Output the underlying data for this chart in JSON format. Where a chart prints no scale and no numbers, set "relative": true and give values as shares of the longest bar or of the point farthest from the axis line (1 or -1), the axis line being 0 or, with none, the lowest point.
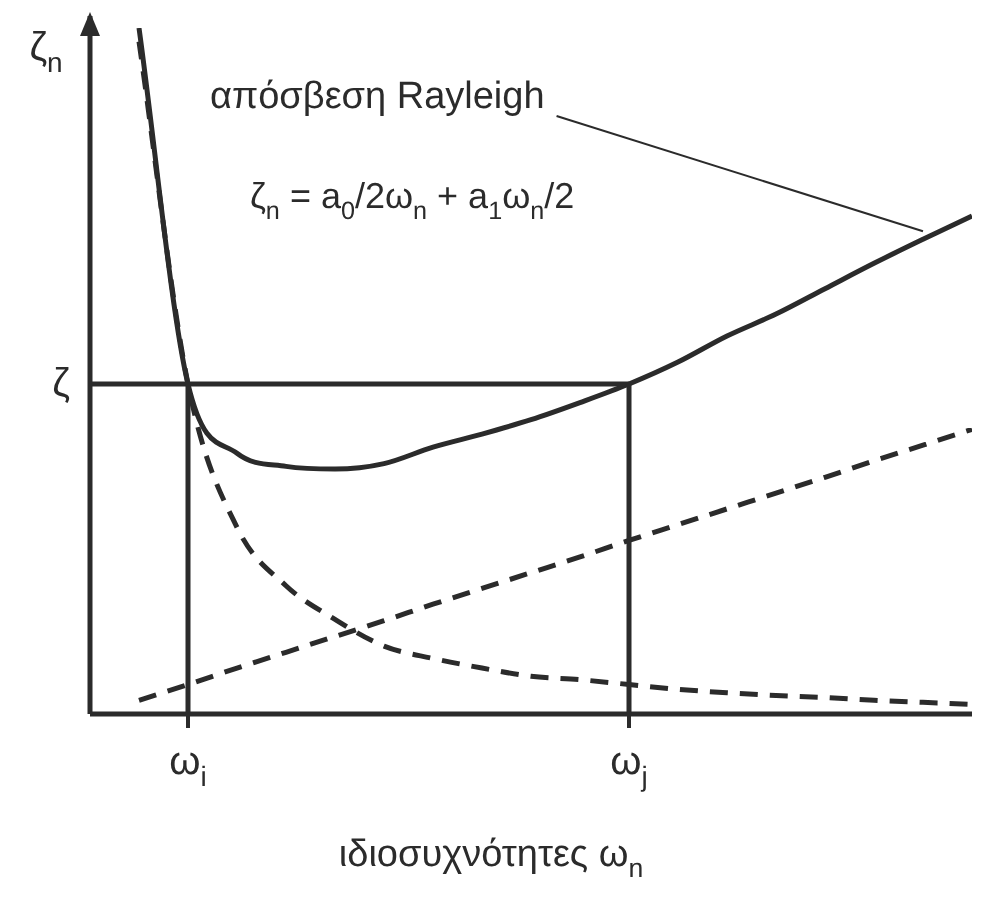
{
  "chart_data": {
    "type": "line",
    "relative": true,
    "xlabel": "ιδιοσυχνότητες ω$_{n}$",
    "ylabel": "ζ$_{n}$",
    "categories": [
      null,
      null,
      "ω$_{i}$",
      null,
      null,
      null,
      null,
      null,
      null,
      null,
      null,
      "ω$_{j}$",
      null,
      null,
      null,
      null,
      null,
      null,
      null
    ],
    "series": [
      {
        "name": "απόσβεση Rayleigh",
        "color": "#2b2b2b",
        "line_style": "solid",
        "values": [
          null,
          1.0,
          0.481,
          0.38,
          0.361,
          0.357,
          0.365,
          0.389,
          0.408,
          0.429,
          0.454,
          0.481,
          0.513,
          0.551,
          0.583,
          0.62,
          0.657,
          0.692,
          0.726
        ]
      },
      {
        "color": "#2b2b2b",
        "line_style": "dashed",
        "values": [
          null,
          0.98,
          0.481,
          0.272,
          0.187,
          0.138,
          0.099,
          0.081,
          0.067,
          0.055,
          0.05,
          0.043,
          0.036,
          0.031,
          0.027,
          0.024,
          0.02,
          0.017,
          0.014
        ]
      },
      {
        "color": "#2b2b2b",
        "line_style": "dashed",
        "values": [
          null,
          0.02,
          0.043,
          0.067,
          0.09,
          0.113,
          0.136,
          0.16,
          0.183,
          0.206,
          0.229,
          0.253,
          0.276,
          0.299,
          0.322,
          0.345,
          0.369,
          0.392,
          0.415
        ]
      }
    ],
    "ref_lines": [
      {
        "axis": "y",
        "value": 0.481,
        "label": "ζ"
      },
      {
        "axis": "x",
        "value": "ω$_{i}$"
      },
      {
        "axis": "x",
        "value": "ω$_{j}$"
      }
    ],
    "annotations": [
      "ζ$_{n}$ = a$_{0}$/2ω$_{n}$ + a$_{1}$ω$_{n}$/2"
    ],
    "legend": false,
    "marker": "none"
  }
}
